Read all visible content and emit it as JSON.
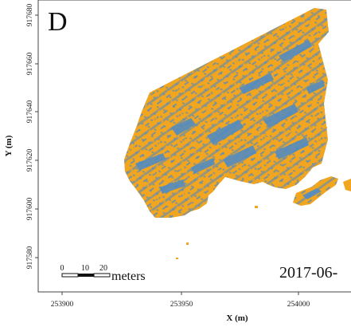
{
  "panel": {
    "letter": "D",
    "date": "2017-06-"
  },
  "colors": {
    "class_a": "#f2a51f",
    "class_b": "#4b8bc9",
    "frame": "#444444"
  },
  "axes": {
    "xlabel": "X (m)",
    "ylabel": "Y (m)",
    "x_ticks": [
      "253900",
      "253950",
      "254000"
    ],
    "y_ticks": [
      "917580",
      "917600",
      "917620",
      "917640",
      "917660",
      "917680"
    ]
  },
  "scalebar": {
    "labels": [
      "0",
      "10",
      "20"
    ],
    "unit": "meters"
  },
  "icons": [
    "raster-map-icon",
    "scale-bar-icon"
  ]
}
